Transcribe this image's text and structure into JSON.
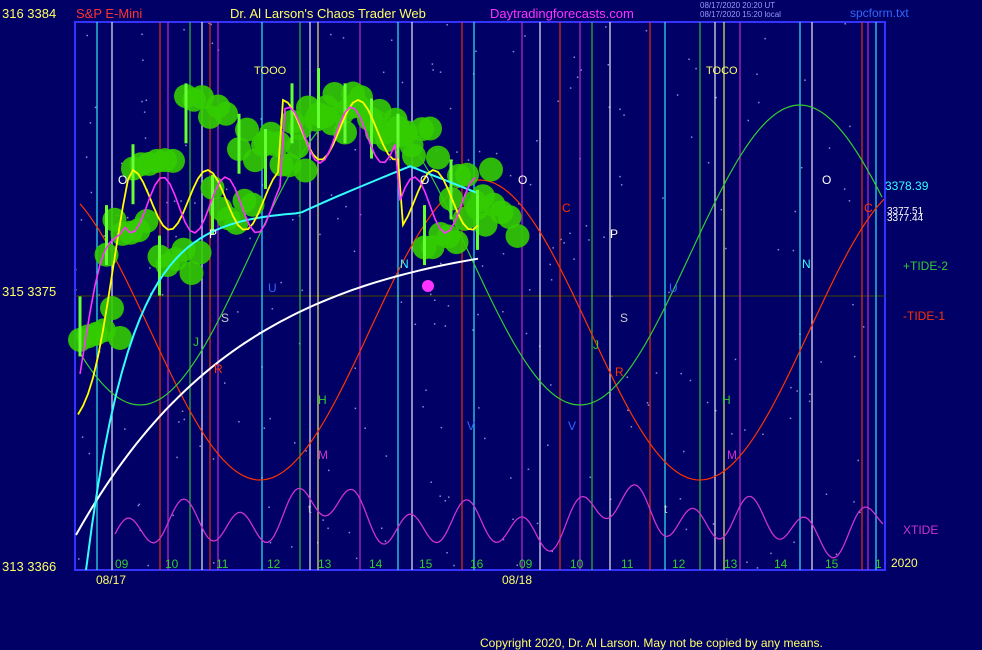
{
  "header": {
    "left_price_label": "316  3384",
    "symbol": "S&P E-Mini",
    "title": "Dr. Al Larson's Chaos Trader Web",
    "site": "Daytradingforecasts.com",
    "timestamp_utc": "08/17/2020 20:20 UT",
    "timestamp_local": "08/17/2020 15:20 local",
    "file_name": "spcform.txt"
  },
  "footer": {
    "copyright": "Copyright 2020, Dr. Al Larson. May not be copied by any means."
  },
  "colors": {
    "background": "#000066",
    "plot_border": "#3333ff",
    "price": "#33cc00",
    "yellow_ma": "#ffff00",
    "magenta_ma": "#ff33ff",
    "cyan_ma": "#33ffff",
    "white_ma": "#ffffff",
    "tide1": "#ff3300",
    "tide2": "#33cc33",
    "xtide": "#cc33cc"
  },
  "chart_data": {
    "type": "line",
    "title": "S&P E-Mini",
    "y_left_labels": [
      "316  3384",
      "315  3375",
      "313  3366"
    ],
    "ylim": [
      3366,
      3384
    ],
    "x_hour_labels": [
      "09",
      "10",
      "11",
      "12",
      "13",
      "14",
      "15",
      "16",
      "09",
      "10",
      "11",
      "12",
      "13",
      "14",
      "15",
      "1"
    ],
    "x_date_labels": [
      "08/17",
      "08/18"
    ],
    "year_label": "2020",
    "right_price_labels": [
      "3378.39",
      "3377.51",
      "3377.44"
    ],
    "series": [
      {
        "name": "+TIDE-2",
        "color": "#33cc33"
      },
      {
        "name": "-TIDE-1",
        "color": "#ff3300"
      },
      {
        "name": "XTIDE",
        "color": "#cc33cc"
      }
    ],
    "price_x": [
      0,
      0.5,
      1,
      1.5,
      2,
      2.5,
      3,
      3.5,
      4,
      4.5,
      5,
      5.5,
      6,
      6.5,
      7,
      7.5
    ],
    "price_y": [
      3374,
      3377,
      3379,
      3376,
      3381,
      3378,
      3380,
      3379.5,
      3381,
      3381.5,
      3381,
      3380.5,
      3380,
      3377,
      3378.5,
      3377.5
    ],
    "annotations": {
      "toco_labels": [
        "TOOO",
        "TOCO"
      ],
      "letters": [
        "O",
        "P",
        "S",
        "U",
        "R",
        "J",
        "H",
        "M",
        "t",
        "N",
        "O",
        "V",
        "C",
        "O",
        "P",
        "S",
        "U",
        "R",
        "J",
        "H",
        "M",
        "t",
        "N",
        "O",
        "C",
        "V"
      ]
    }
  }
}
